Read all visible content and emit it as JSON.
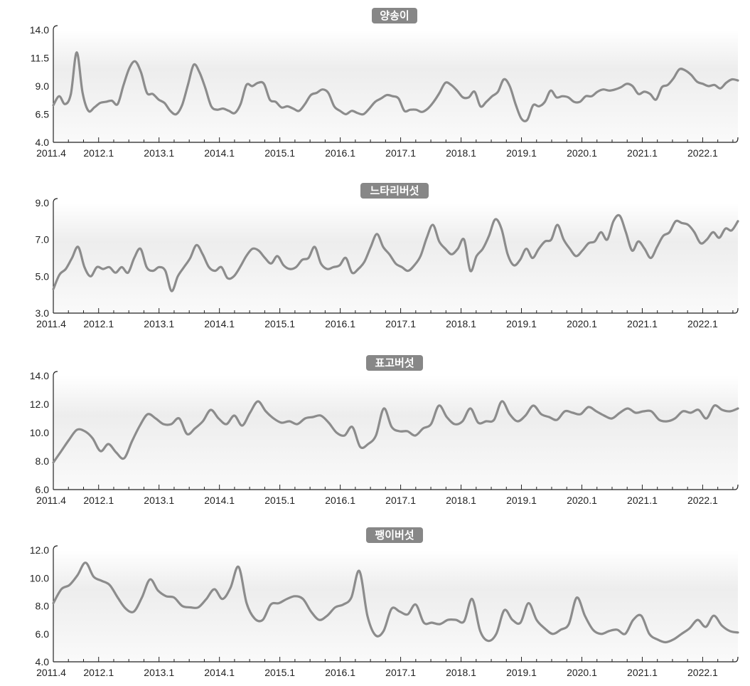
{
  "chart_data": [
    {
      "type": "line",
      "title": "양송이",
      "ylim": [
        4.0,
        14.0
      ],
      "yticks": [
        "4.0",
        "6.5",
        "9.0",
        "11.5",
        "14.0"
      ],
      "ytick_values": [
        4.0,
        6.5,
        9.0,
        11.5,
        14.0
      ],
      "x_labels": [
        "2011.4",
        "2012.1",
        "2013.1",
        "2014.1",
        "2015.1",
        "2016.1",
        "2017.1",
        "2018.1",
        "2019.1",
        "2020.1",
        "2021.1",
        "2022.1"
      ],
      "x_start": "2011-04",
      "series": [
        {
          "values": [
            7.3,
            8.1,
            7.4,
            8.3,
            12.0,
            8.4,
            6.8,
            7.1,
            7.5,
            7.6,
            7.7,
            7.4,
            9.1,
            10.6,
            11.2,
            10.2,
            8.4,
            8.3,
            7.8,
            7.5,
            6.8,
            6.5,
            7.3,
            9.1,
            10.9,
            10.2,
            8.8,
            7.2,
            6.9,
            7.0,
            6.8,
            6.6,
            7.4,
            9.1,
            9.0,
            9.3,
            9.2,
            7.8,
            7.6,
            7.1,
            7.2,
            7.0,
            6.8,
            7.4,
            8.2,
            8.4,
            8.7,
            8.4,
            7.2,
            6.8,
            6.5,
            6.8,
            6.6,
            6.5,
            7.0,
            7.6,
            7.9,
            8.2,
            8.1,
            7.9,
            6.8,
            6.9,
            6.9,
            6.7,
            7.0,
            7.6,
            8.4,
            9.3,
            9.1,
            8.6,
            8.0,
            8.0,
            8.5,
            7.2,
            7.6,
            8.1,
            8.5,
            9.6,
            9.0,
            7.4,
            6.1,
            6.0,
            7.3,
            7.2,
            7.6,
            8.6,
            8.0,
            8.1,
            8.0,
            7.6,
            7.6,
            8.1,
            8.1,
            8.5,
            8.7,
            8.6,
            8.7,
            8.9,
            9.2,
            9.0,
            8.3,
            8.5,
            8.3,
            7.8,
            8.9,
            9.1,
            9.7,
            10.5,
            10.4,
            10.0,
            9.4,
            9.2,
            9.0,
            9.1,
            8.8,
            9.3,
            9.6,
            9.5
          ]
        }
      ]
    },
    {
      "type": "line",
      "title": "느타리버섯",
      "ylim": [
        3.0,
        9.0
      ],
      "yticks": [
        "3.0",
        "5.0",
        "7.0",
        "9.0"
      ],
      "ytick_values": [
        3.0,
        5.0,
        7.0,
        9.0
      ],
      "x_labels": [
        "2011.4",
        "2012.1",
        "2013.1",
        "2014.1",
        "2015.1",
        "2016.1",
        "2017.1",
        "2018.1",
        "2019.1",
        "2020.1",
        "2021.1",
        "2022.1"
      ],
      "x_start": "2011-04",
      "series": [
        {
          "values": [
            4.3,
            5.1,
            5.4,
            6.0,
            6.6,
            5.5,
            5.0,
            5.5,
            5.4,
            5.5,
            5.2,
            5.5,
            5.2,
            6.0,
            6.5,
            5.5,
            5.3,
            5.5,
            5.3,
            4.2,
            5.0,
            5.5,
            6.0,
            6.7,
            6.2,
            5.5,
            5.3,
            5.5,
            4.9,
            5.0,
            5.5,
            6.1,
            6.5,
            6.4,
            6.0,
            5.7,
            6.1,
            5.6,
            5.4,
            5.5,
            5.9,
            6.0,
            6.6,
            5.7,
            5.4,
            5.5,
            5.6,
            6.0,
            5.2,
            5.4,
            5.8,
            6.6,
            7.3,
            6.6,
            6.2,
            5.7,
            5.5,
            5.3,
            5.6,
            6.1,
            7.1,
            7.8,
            6.9,
            6.5,
            6.2,
            6.5,
            7.0,
            5.3,
            6.1,
            6.5,
            7.2,
            8.1,
            7.6,
            6.2,
            5.6,
            5.9,
            6.5,
            6.0,
            6.5,
            6.9,
            7.0,
            7.8,
            7.0,
            6.5,
            6.1,
            6.4,
            6.8,
            6.9,
            7.4,
            7.0,
            8.0,
            8.3,
            7.4,
            6.4,
            6.9,
            6.5,
            6.0,
            6.6,
            7.2,
            7.4,
            8.0,
            7.9,
            7.8,
            7.4,
            6.8,
            7.0,
            7.4,
            7.1,
            7.6,
            7.5,
            8.0
          ]
        }
      ]
    },
    {
      "type": "line",
      "title": "표고버섯",
      "ylim": [
        6.0,
        14.0
      ],
      "yticks": [
        "6.0",
        "8.0",
        "10.0",
        "12.0",
        "14.0"
      ],
      "ytick_values": [
        6.0,
        8.0,
        10.0,
        12.0,
        14.0
      ],
      "x_labels": [
        "2011.4",
        "2012.1",
        "2013.1",
        "2014.1",
        "2015.1",
        "2016.1",
        "2017.1",
        "2018.1",
        "2019.1",
        "2020.1",
        "2021.1",
        "2022.1"
      ],
      "x_start": "2011-04",
      "series": [
        {
          "values": [
            7.9,
            8.7,
            9.5,
            10.2,
            10.1,
            9.6,
            8.7,
            9.2,
            8.6,
            8.2,
            9.4,
            10.5,
            11.3,
            11.0,
            10.6,
            10.6,
            11.0,
            9.9,
            10.3,
            10.8,
            11.6,
            11.0,
            10.6,
            11.2,
            10.5,
            11.4,
            12.2,
            11.5,
            11.0,
            10.7,
            10.8,
            10.6,
            11.0,
            11.1,
            11.2,
            10.7,
            10.0,
            9.8,
            10.4,
            9.0,
            9.2,
            9.8,
            11.7,
            10.4,
            10.1,
            10.1,
            9.8,
            10.3,
            10.6,
            11.9,
            11.1,
            10.6,
            10.8,
            11.7,
            10.7,
            10.8,
            10.9,
            12.2,
            11.3,
            10.8,
            11.2,
            11.9,
            11.3,
            11.1,
            10.9,
            11.5,
            11.4,
            11.3,
            11.8,
            11.5,
            11.2,
            11.0,
            11.4,
            11.7,
            11.4,
            11.5,
            11.5,
            10.9,
            10.8,
            11.0,
            11.5,
            11.4,
            11.6,
            11.0,
            11.9,
            11.6,
            11.5,
            11.7
          ]
        }
      ]
    },
    {
      "type": "line",
      "title": "팽이버섯",
      "ylim": [
        4.0,
        12.0
      ],
      "yticks": [
        "4.0",
        "6.0",
        "8.0",
        "10.0",
        "12.0"
      ],
      "ytick_values": [
        4.0,
        6.0,
        8.0,
        10.0,
        12.0
      ],
      "x_labels": [
        "2011.4",
        "2012.1",
        "2013.1",
        "2014.1",
        "2015.1",
        "2016.1",
        "2017.1",
        "2018.1",
        "2019.1",
        "2020.1",
        "2021.1",
        "2022.1"
      ],
      "x_start": "2011-04",
      "series": [
        {
          "values": [
            8.2,
            9.2,
            9.5,
            10.2,
            11.1,
            10.1,
            9.8,
            9.5,
            8.6,
            7.8,
            7.6,
            8.6,
            9.9,
            9.1,
            8.7,
            8.6,
            8.0,
            7.9,
            7.9,
            8.5,
            9.2,
            8.5,
            9.3,
            10.8,
            8.2,
            7.1,
            7.0,
            8.1,
            8.2,
            8.5,
            8.7,
            8.5,
            7.6,
            7.0,
            7.3,
            7.9,
            8.1,
            8.6,
            10.5,
            7.3,
            5.9,
            6.2,
            7.8,
            7.6,
            7.4,
            8.1,
            6.8,
            6.8,
            6.7,
            7.0,
            7.0,
            6.9,
            8.5,
            6.2,
            5.5,
            6.0,
            7.7,
            7.0,
            6.8,
            8.2,
            7.0,
            6.4,
            6.0,
            6.3,
            6.7,
            8.6,
            7.3,
            6.3,
            6.0,
            6.2,
            6.3,
            6.0,
            7.0,
            7.3,
            6.0,
            5.6,
            5.4,
            5.6,
            6.0,
            6.4,
            7.0,
            6.5,
            7.3,
            6.6,
            6.2,
            6.1
          ]
        }
      ]
    }
  ]
}
